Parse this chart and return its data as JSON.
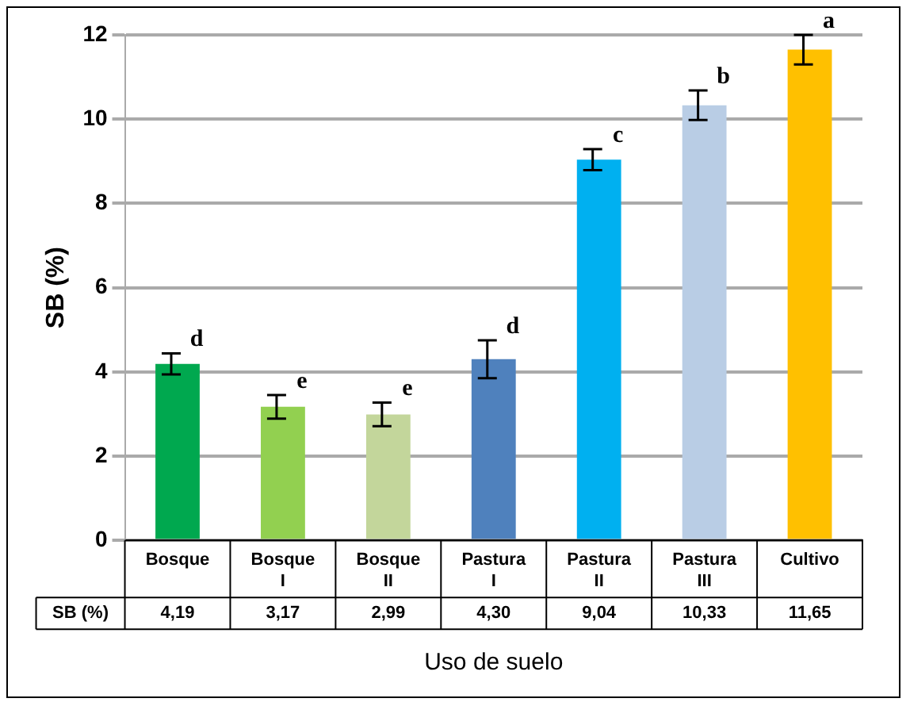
{
  "chart_data": {
    "type": "bar",
    "xlabel": "Uso de suelo",
    "ylabel": "SB (%)",
    "categories": [
      "Bosque",
      "Bosque I",
      "Bosque II",
      "Pastura I",
      "Pastura II",
      "Pastura III",
      "Cultivo"
    ],
    "values": [
      4.19,
      3.17,
      2.99,
      4.3,
      9.04,
      10.33,
      11.65
    ],
    "colors": [
      "#00a84f",
      "#92d050",
      "#c3d69b",
      "#4f81bd",
      "#00b0f0",
      "#b9cde5",
      "#ffc000"
    ],
    "errors": [
      0.25,
      0.28,
      0.28,
      0.45,
      0.25,
      0.35,
      0.35
    ],
    "value_labels": [
      "4,19",
      "3,17",
      "2,99",
      "4,30",
      "9,04",
      "10,33",
      "11,65"
    ],
    "annotations": [
      "d",
      "e",
      "e",
      "d",
      "c",
      "b",
      "a"
    ],
    "ylim": [
      0,
      12
    ],
    "yticks": [
      0,
      2,
      4,
      6,
      8,
      10,
      12
    ],
    "grid": "y",
    "legend": false
  }
}
